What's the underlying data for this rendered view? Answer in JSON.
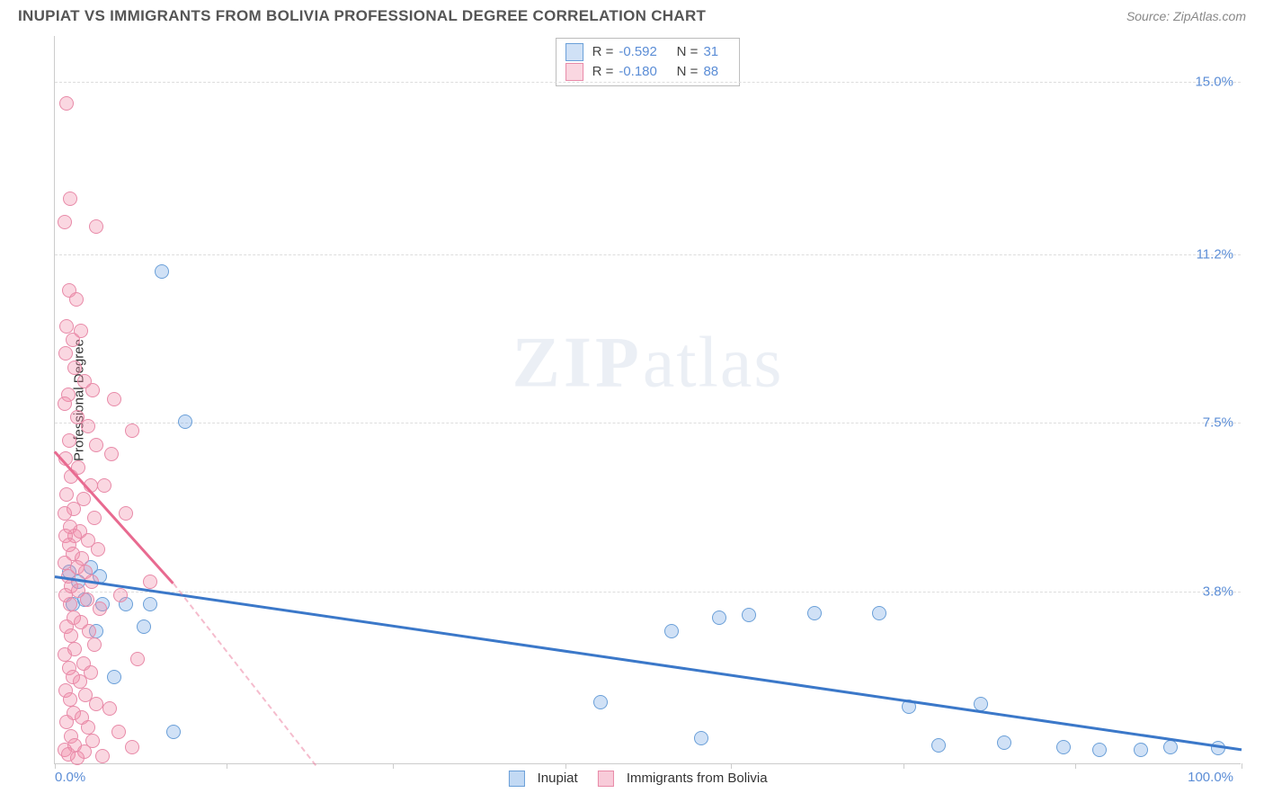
{
  "title": "INUPIAT VS IMMIGRANTS FROM BOLIVIA PROFESSIONAL DEGREE CORRELATION CHART",
  "source": "Source: ZipAtlas.com",
  "watermark": {
    "bold": "ZIP",
    "light": "atlas"
  },
  "chart": {
    "type": "scatter",
    "ylabel": "Professional Degree",
    "xlim": [
      0,
      100
    ],
    "ylim": [
      0,
      16
    ],
    "xticks": [
      {
        "pos": 0,
        "label": "0.0%"
      },
      {
        "pos": 14.5,
        "label": ""
      },
      {
        "pos": 28.5,
        "label": ""
      },
      {
        "pos": 43,
        "label": ""
      },
      {
        "pos": 57,
        "label": ""
      },
      {
        "pos": 71.5,
        "label": ""
      },
      {
        "pos": 86,
        "label": ""
      },
      {
        "pos": 100,
        "label": "100.0%"
      }
    ],
    "yticks": [
      {
        "pos": 3.8,
        "label": "3.8%"
      },
      {
        "pos": 7.5,
        "label": "7.5%"
      },
      {
        "pos": 11.2,
        "label": "11.2%"
      },
      {
        "pos": 15.0,
        "label": "15.0%"
      }
    ],
    "background_color": "#ffffff",
    "grid_color": "#dddddd",
    "series": [
      {
        "name": "Inupiat",
        "color_fill": "rgba(120,170,230,0.35)",
        "color_stroke": "#6a9fd8",
        "trend_color": "#3b78c9",
        "R": "-0.592",
        "N": "31",
        "trend": {
          "x1": 0,
          "y1": 4.15,
          "x2": 100,
          "y2": 0.35
        },
        "points": [
          [
            1.2,
            4.2
          ],
          [
            2.0,
            4.0
          ],
          [
            3.0,
            4.3
          ],
          [
            3.8,
            4.1
          ],
          [
            1.5,
            3.5
          ],
          [
            2.5,
            3.6
          ],
          [
            4.0,
            3.5
          ],
          [
            6.0,
            3.5
          ],
          [
            8.0,
            3.5
          ],
          [
            7.5,
            3.0
          ],
          [
            3.5,
            2.9
          ],
          [
            5.0,
            1.9
          ],
          [
            10.0,
            0.7
          ],
          [
            9.0,
            10.8
          ],
          [
            11.0,
            7.5
          ],
          [
            52.0,
            2.9
          ],
          [
            56.0,
            3.2
          ],
          [
            58.5,
            3.25
          ],
          [
            64.0,
            3.3
          ],
          [
            69.5,
            3.3
          ],
          [
            54.5,
            0.55
          ],
          [
            46.0,
            1.35
          ],
          [
            72.0,
            1.25
          ],
          [
            78.0,
            1.3
          ],
          [
            74.5,
            0.4
          ],
          [
            80.0,
            0.45
          ],
          [
            85.0,
            0.35
          ],
          [
            88.0,
            0.3
          ],
          [
            91.5,
            0.3
          ],
          [
            94.0,
            0.35
          ],
          [
            98.0,
            0.33
          ]
        ]
      },
      {
        "name": "Immigrants from Bolivia",
        "color_fill": "rgba(240,140,170,0.35)",
        "color_stroke": "#e88aa8",
        "trend_color": "#e86a90",
        "R": "-0.180",
        "N": "88",
        "trend_solid": {
          "x1": 0,
          "y1": 6.9,
          "x2": 10.0,
          "y2": 4.0
        },
        "trend_dash": {
          "x1": 10.0,
          "y1": 4.0,
          "x2": 22.0,
          "y2": 0.0
        },
        "points": [
          [
            1.0,
            14.5
          ],
          [
            1.3,
            12.4
          ],
          [
            0.8,
            11.9
          ],
          [
            3.5,
            11.8
          ],
          [
            1.2,
            10.4
          ],
          [
            1.8,
            10.2
          ],
          [
            1.0,
            9.6
          ],
          [
            2.2,
            9.5
          ],
          [
            1.5,
            9.3
          ],
          [
            0.9,
            9.0
          ],
          [
            1.7,
            8.7
          ],
          [
            2.5,
            8.4
          ],
          [
            1.1,
            8.1
          ],
          [
            3.2,
            8.2
          ],
          [
            0.8,
            7.9
          ],
          [
            1.9,
            7.6
          ],
          [
            2.8,
            7.4
          ],
          [
            1.2,
            7.1
          ],
          [
            3.5,
            7.0
          ],
          [
            0.9,
            6.7
          ],
          [
            2.0,
            6.5
          ],
          [
            1.4,
            6.3
          ],
          [
            3.0,
            6.1
          ],
          [
            4.2,
            6.1
          ],
          [
            1.0,
            5.9
          ],
          [
            2.4,
            5.8
          ],
          [
            1.6,
            5.6
          ],
          [
            0.8,
            5.5
          ],
          [
            3.3,
            5.4
          ],
          [
            1.3,
            5.2
          ],
          [
            2.1,
            5.1
          ],
          [
            1.7,
            5.0
          ],
          [
            0.9,
            5.0
          ],
          [
            2.8,
            4.9
          ],
          [
            1.2,
            4.8
          ],
          [
            3.6,
            4.7
          ],
          [
            1.5,
            4.6
          ],
          [
            2.3,
            4.5
          ],
          [
            0.8,
            4.4
          ],
          [
            1.9,
            4.3
          ],
          [
            2.6,
            4.2
          ],
          [
            1.1,
            4.1
          ],
          [
            3.1,
            4.0
          ],
          [
            1.4,
            3.9
          ],
          [
            2.0,
            3.8
          ],
          [
            0.9,
            3.7
          ],
          [
            2.7,
            3.6
          ],
          [
            1.3,
            3.5
          ],
          [
            3.8,
            3.4
          ],
          [
            1.6,
            3.2
          ],
          [
            2.2,
            3.1
          ],
          [
            1.0,
            3.0
          ],
          [
            2.9,
            2.9
          ],
          [
            1.4,
            2.8
          ],
          [
            3.3,
            2.6
          ],
          [
            1.7,
            2.5
          ],
          [
            0.8,
            2.4
          ],
          [
            2.4,
            2.2
          ],
          [
            1.2,
            2.1
          ],
          [
            3.0,
            2.0
          ],
          [
            1.5,
            1.9
          ],
          [
            2.1,
            1.8
          ],
          [
            0.9,
            1.6
          ],
          [
            2.6,
            1.5
          ],
          [
            1.3,
            1.4
          ],
          [
            3.5,
            1.3
          ],
          [
            4.6,
            1.2
          ],
          [
            1.6,
            1.1
          ],
          [
            2.3,
            1.0
          ],
          [
            1.0,
            0.9
          ],
          [
            2.8,
            0.8
          ],
          [
            5.4,
            0.7
          ],
          [
            1.4,
            0.6
          ],
          [
            3.2,
            0.5
          ],
          [
            1.7,
            0.4
          ],
          [
            0.8,
            0.3
          ],
          [
            2.5,
            0.25
          ],
          [
            6.5,
            0.35
          ],
          [
            1.1,
            0.2
          ],
          [
            4.0,
            0.15
          ],
          [
            1.9,
            0.12
          ],
          [
            8.0,
            4.0
          ],
          [
            5.5,
            3.7
          ],
          [
            6.0,
            5.5
          ],
          [
            4.8,
            6.8
          ],
          [
            7.0,
            2.3
          ],
          [
            5.0,
            8.0
          ],
          [
            6.5,
            7.3
          ]
        ]
      }
    ],
    "legend_bottom": [
      {
        "label": "Inupiat",
        "fill": "rgba(120,170,230,0.45)",
        "stroke": "#6a9fd8"
      },
      {
        "label": "Immigrants from Bolivia",
        "fill": "rgba(240,140,170,0.45)",
        "stroke": "#e88aa8"
      }
    ]
  }
}
